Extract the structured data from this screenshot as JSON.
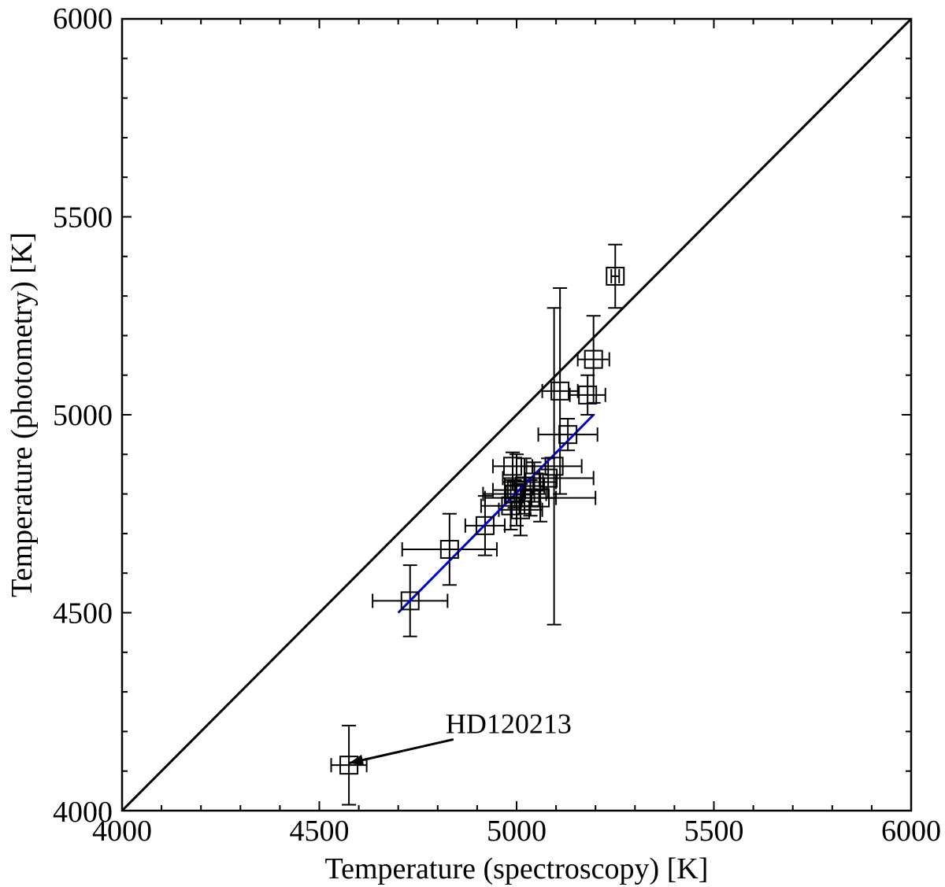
{
  "chart_data": {
    "type": "scatter",
    "xlabel": "Temperature (spectroscopy) [K]",
    "ylabel": "Temperature (photometry) [K]",
    "xlim": [
      4000,
      6000
    ],
    "ylim": [
      4000,
      6000
    ],
    "x_major_ticks": [
      4000,
      4500,
      5000,
      5500,
      6000
    ],
    "y_major_ticks": [
      4000,
      4500,
      5000,
      5500,
      6000
    ],
    "x_minor_step": 100,
    "y_minor_step": 100,
    "grid": false,
    "marker": "open-square",
    "points": [
      {
        "x": 4575,
        "y": 4115,
        "xerr": 45,
        "yerr": 100
      },
      {
        "x": 4730,
        "y": 4530,
        "xerr": 95,
        "yerr": 90
      },
      {
        "x": 4830,
        "y": 4660,
        "xerr": 120,
        "yerr": 90
      },
      {
        "x": 4920,
        "y": 4720,
        "xerr": 50,
        "yerr": 75
      },
      {
        "x": 4985,
        "y": 4770,
        "xerr": 75,
        "yerr": 60
      },
      {
        "x": 4990,
        "y": 4870,
        "xerr": 50,
        "yerr": 35
      },
      {
        "x": 4995,
        "y": 4800,
        "xerr": 80,
        "yerr": 35
      },
      {
        "x": 5000,
        "y": 4810,
        "xerr": 60,
        "yerr": 90
      },
      {
        "x": 5010,
        "y": 4760,
        "xerr": 55,
        "yerr": 65
      },
      {
        "x": 5020,
        "y": 4820,
        "xerr": 50,
        "yerr": 70
      },
      {
        "x": 5035,
        "y": 4790,
        "xerr": 65,
        "yerr": 45
      },
      {
        "x": 5045,
        "y": 4830,
        "xerr": 55,
        "yerr": 50
      },
      {
        "x": 5060,
        "y": 4790,
        "xerr": 140,
        "yerr": 60
      },
      {
        "x": 5080,
        "y": 4840,
        "xerr": 115,
        "yerr": 50
      },
      {
        "x": 5095,
        "y": 4870,
        "xerr": 70,
        "yerr": 400
      },
      {
        "x": 5110,
        "y": 5060,
        "xerr": 45,
        "yerr": 260
      },
      {
        "x": 5130,
        "y": 4950,
        "xerr": 75,
        "yerr": 40
      },
      {
        "x": 5180,
        "y": 5050,
        "xerr": 45,
        "yerr": 50
      },
      {
        "x": 5195,
        "y": 5140,
        "xerr": 40,
        "yerr": 110
      },
      {
        "x": 5250,
        "y": 5350,
        "xerr": 10,
        "yerr": 80
      }
    ],
    "lines": [
      {
        "name": "one-to-one",
        "color": "#000000",
        "x": [
          4000,
          6000
        ],
        "y": [
          4000,
          6000
        ]
      },
      {
        "name": "fit",
        "color": "#0000cc",
        "x": [
          4700,
          5195
        ],
        "y": [
          4500,
          5000
        ]
      }
    ],
    "annotations": [
      {
        "text": "HD120213",
        "text_x": 4840,
        "text_y": 4220,
        "arrow_from": [
          4840,
          4180
        ],
        "arrow_to": [
          4575,
          4120
        ]
      }
    ]
  }
}
